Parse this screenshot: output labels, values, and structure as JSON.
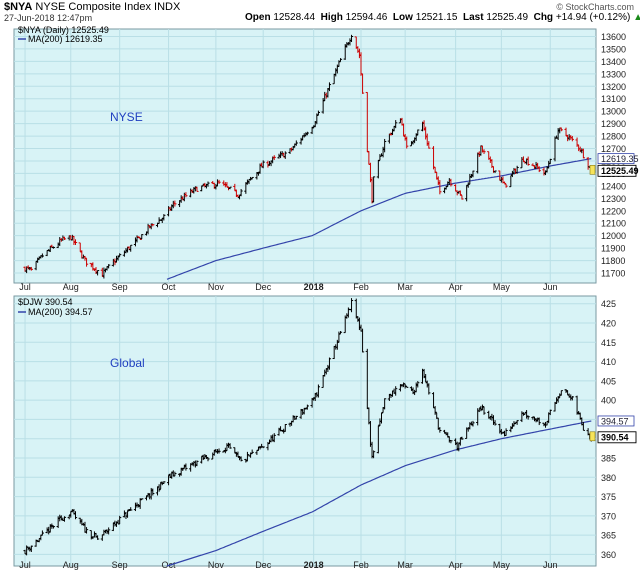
{
  "header": {
    "symbol": "$NYA",
    "name": "NYSE Composite Index",
    "exchange": "INDX",
    "date": "27-Jun-2018 12:47pm",
    "open_label": "Open",
    "open": "12528.44",
    "high_label": "High",
    "high": "12594.46",
    "low_label": "Low",
    "low": "12521.15",
    "last_label": "Last",
    "last": "12525.49",
    "chg_label": "Chg",
    "chg": "+14.94 (+0.12%)",
    "chg_icon": "up-arrow-icon",
    "brand": "© StockCharts.com"
  },
  "colors": {
    "panel_bg": "#d8f3f6",
    "grid": "#b9dfe6",
    "up": "#000000",
    "down": "#cc0000",
    "ma": "#3344aa",
    "caption": "#2040c0",
    "last_box": "#f6e45a"
  },
  "chart_data": [
    {
      "type": "line",
      "style": "ohlc",
      "legend": "$NYA (Daily) 12525.49",
      "ma_legend": "MA(200) 12619.35",
      "caption": "NYSE",
      "ylim": [
        11620,
        13660
      ],
      "y_ticks": [
        11700,
        11800,
        11900,
        12000,
        12100,
        12200,
        12300,
        12400,
        12500,
        12600,
        12700,
        12800,
        12900,
        13000,
        13100,
        13200,
        13300,
        13400,
        13500,
        13600
      ],
      "x_ticks": [
        {
          "label": "Jul",
          "bold": false
        },
        {
          "label": "Aug",
          "bold": false
        },
        {
          "label": "Sep",
          "bold": false
        },
        {
          "label": "Oct",
          "bold": false
        },
        {
          "label": "Nov",
          "bold": false
        },
        {
          "label": "Dec",
          "bold": false
        },
        {
          "label": "2018",
          "bold": true
        },
        {
          "label": "Feb",
          "bold": false
        },
        {
          "label": "Mar",
          "bold": false
        },
        {
          "label": "Apr",
          "bold": false
        },
        {
          "label": "May",
          "bold": false
        },
        {
          "label": "Jun",
          "bold": false
        }
      ],
      "tag_ma": "12619.35",
      "tag_last": "12525.49",
      "close_anchors": [
        {
          "date": "2017-07-03",
          "value": 11740
        },
        {
          "date": "2017-07-07",
          "value": 11720
        },
        {
          "date": "2017-07-14",
          "value": 11840
        },
        {
          "date": "2017-07-26",
          "value": 11960
        },
        {
          "date": "2017-08-01",
          "value": 11990
        },
        {
          "date": "2017-08-10",
          "value": 11800
        },
        {
          "date": "2017-08-17",
          "value": 11730
        },
        {
          "date": "2017-08-21",
          "value": 11690
        },
        {
          "date": "2017-08-29",
          "value": 11800
        },
        {
          "date": "2017-09-11",
          "value": 11950
        },
        {
          "date": "2017-09-20",
          "value": 12070
        },
        {
          "date": "2017-09-29",
          "value": 12150
        },
        {
          "date": "2017-10-05",
          "value": 12250
        },
        {
          "date": "2017-10-20",
          "value": 12380
        },
        {
          "date": "2017-11-03",
          "value": 12420
        },
        {
          "date": "2017-11-15",
          "value": 12330
        },
        {
          "date": "2017-11-30",
          "value": 12560
        },
        {
          "date": "2017-12-18",
          "value": 12680
        },
        {
          "date": "2018-01-02",
          "value": 12900
        },
        {
          "date": "2018-01-12",
          "value": 13200
        },
        {
          "date": "2018-01-26",
          "value": 13620
        },
        {
          "date": "2018-01-31",
          "value": 13450
        },
        {
          "date": "2018-02-05",
          "value": 12700
        },
        {
          "date": "2018-02-08",
          "value": 12300
        },
        {
          "date": "2018-02-09",
          "value": 12450
        },
        {
          "date": "2018-02-16",
          "value": 12750
        },
        {
          "date": "2018-02-26",
          "value": 12950
        },
        {
          "date": "2018-03-02",
          "value": 12700
        },
        {
          "date": "2018-03-12",
          "value": 12900
        },
        {
          "date": "2018-03-23",
          "value": 12350
        },
        {
          "date": "2018-03-29",
          "value": 12450
        },
        {
          "date": "2018-04-06",
          "value": 12300
        },
        {
          "date": "2018-04-18",
          "value": 12700
        },
        {
          "date": "2018-05-03",
          "value": 12400
        },
        {
          "date": "2018-05-15",
          "value": 12620
        },
        {
          "date": "2018-05-29",
          "value": 12500
        },
        {
          "date": "2018-06-06",
          "value": 12850
        },
        {
          "date": "2018-06-12",
          "value": 12800
        },
        {
          "date": "2018-06-20",
          "value": 12700
        },
        {
          "date": "2018-06-27",
          "value": 12525
        }
      ],
      "ma_anchors": [
        {
          "date": "2017-10-01",
          "value": 11650
        },
        {
          "date": "2017-11-01",
          "value": 11800
        },
        {
          "date": "2017-12-01",
          "value": 11900
        },
        {
          "date": "2018-01-01",
          "value": 12000
        },
        {
          "date": "2018-02-01",
          "value": 12200
        },
        {
          "date": "2018-03-01",
          "value": 12340
        },
        {
          "date": "2018-04-01",
          "value": 12420
        },
        {
          "date": "2018-05-01",
          "value": 12480
        },
        {
          "date": "2018-06-01",
          "value": 12560
        },
        {
          "date": "2018-06-27",
          "value": 12619
        }
      ]
    },
    {
      "type": "line",
      "style": "ohlc",
      "legend": "$DJW 390.54",
      "ma_legend": "MA(200) 394.57",
      "caption": "Global",
      "ylim": [
        357,
        427
      ],
      "y_ticks": [
        360,
        365,
        370,
        375,
        380,
        385,
        390,
        395,
        400,
        405,
        410,
        415,
        420,
        425
      ],
      "x_ticks": [
        {
          "label": "Jul",
          "bold": false
        },
        {
          "label": "Aug",
          "bold": false
        },
        {
          "label": "Sep",
          "bold": false
        },
        {
          "label": "Oct",
          "bold": false
        },
        {
          "label": "Nov",
          "bold": false
        },
        {
          "label": "Dec",
          "bold": false
        },
        {
          "label": "2018",
          "bold": true
        },
        {
          "label": "Feb",
          "bold": false
        },
        {
          "label": "Mar",
          "bold": false
        },
        {
          "label": "Apr",
          "bold": false
        },
        {
          "label": "May",
          "bold": false
        },
        {
          "label": "Jun",
          "bold": false
        }
      ],
      "tag_ma": "394.57",
      "tag_last": "390.54",
      "close_anchors": [
        {
          "date": "2017-07-03",
          "value": 361
        },
        {
          "date": "2017-07-12",
          "value": 364
        },
        {
          "date": "2017-07-25",
          "value": 369
        },
        {
          "date": "2017-08-01",
          "value": 371
        },
        {
          "date": "2017-08-11",
          "value": 366
        },
        {
          "date": "2017-08-18",
          "value": 364
        },
        {
          "date": "2017-08-29",
          "value": 368
        },
        {
          "date": "2017-09-12",
          "value": 373
        },
        {
          "date": "2017-09-22",
          "value": 376
        },
        {
          "date": "2017-10-02",
          "value": 380
        },
        {
          "date": "2017-10-20",
          "value": 384
        },
        {
          "date": "2017-11-08",
          "value": 388
        },
        {
          "date": "2017-11-17",
          "value": 384
        },
        {
          "date": "2017-12-01",
          "value": 388
        },
        {
          "date": "2017-12-15",
          "value": 393
        },
        {
          "date": "2018-01-02",
          "value": 400
        },
        {
          "date": "2018-01-12",
          "value": 410
        },
        {
          "date": "2018-01-26",
          "value": 425
        },
        {
          "date": "2018-02-01",
          "value": 418
        },
        {
          "date": "2018-02-05",
          "value": 398
        },
        {
          "date": "2018-02-08",
          "value": 385
        },
        {
          "date": "2018-02-16",
          "value": 400
        },
        {
          "date": "2018-02-26",
          "value": 404
        },
        {
          "date": "2018-03-06",
          "value": 402
        },
        {
          "date": "2018-03-12",
          "value": 408
        },
        {
          "date": "2018-03-23",
          "value": 392
        },
        {
          "date": "2018-04-03",
          "value": 388
        },
        {
          "date": "2018-04-18",
          "value": 398
        },
        {
          "date": "2018-05-03",
          "value": 391
        },
        {
          "date": "2018-05-14",
          "value": 397
        },
        {
          "date": "2018-05-29",
          "value": 394
        },
        {
          "date": "2018-06-08",
          "value": 403
        },
        {
          "date": "2018-06-15",
          "value": 400
        },
        {
          "date": "2018-06-22",
          "value": 393
        },
        {
          "date": "2018-06-27",
          "value": 390.5
        }
      ],
      "ma_anchors": [
        {
          "date": "2017-10-01",
          "value": 357
        },
        {
          "date": "2017-11-01",
          "value": 361
        },
        {
          "date": "2017-12-01",
          "value": 366
        },
        {
          "date": "2018-01-01",
          "value": 371
        },
        {
          "date": "2018-02-01",
          "value": 378
        },
        {
          "date": "2018-03-01",
          "value": 383
        },
        {
          "date": "2018-04-01",
          "value": 387
        },
        {
          "date": "2018-05-01",
          "value": 390
        },
        {
          "date": "2018-06-01",
          "value": 392.5
        },
        {
          "date": "2018-06-27",
          "value": 394.6
        }
      ]
    }
  ]
}
